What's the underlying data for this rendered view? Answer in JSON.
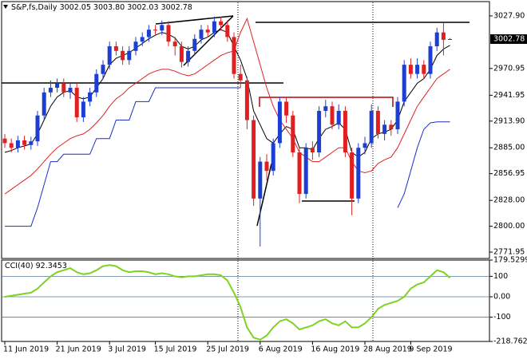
{
  "chart_data": [
    {
      "type": "candlestick",
      "title": "S&P,fs,Daily",
      "ohlc_labels": [
        "3002.05",
        "3003.80",
        "3002.03",
        "3002.78"
      ],
      "categories": [
        "11 Jun 2019",
        null,
        null,
        null,
        null,
        null,
        null,
        null,
        "21 Jun 2019",
        null,
        null,
        null,
        null,
        null,
        null,
        null,
        "3 Jul 2019",
        null,
        null,
        null,
        null,
        null,
        null,
        "15 Jul 2019",
        null,
        null,
        null,
        null,
        null,
        null,
        null,
        "25 Jul 2019",
        null,
        null,
        null,
        null,
        null,
        null,
        null,
        "6 Aug 2019",
        null,
        null,
        null,
        null,
        null,
        null,
        null,
        "16 Aug 2019",
        null,
        null,
        null,
        null,
        null,
        null,
        null,
        "28 Aug 2019",
        null,
        null,
        null,
        null,
        null,
        null,
        "9 Sep 2019",
        null,
        null,
        null,
        null,
        null,
        null
      ],
      "open": [
        2895,
        2890,
        2885,
        2893,
        2888,
        2892,
        2920,
        2945,
        2950,
        2955,
        2945,
        2950,
        2918,
        2935,
        2945,
        2965,
        2975,
        2995,
        2990,
        2980,
        2990,
        3000,
        3005,
        3013,
        3012,
        3018,
        3000,
        2995,
        2978,
        2990,
        3003,
        3013,
        3010,
        3022,
        3018,
        3005,
        2965,
        2958,
        2915,
        2830,
        2870,
        2860,
        2890,
        2935,
        2920,
        2880,
        2835,
        2885,
        2880,
        2925,
        2930,
        2910,
        2925,
        2880,
        2830,
        2885,
        2890,
        2925,
        2900,
        2910,
        2905,
        2935,
        2975,
        2965,
        2975,
        2965,
        2995,
        3010,
        3002.05
      ],
      "high": [
        2900,
        2895,
        2898,
        2898,
        2897,
        2925,
        2950,
        2958,
        2960,
        2960,
        2955,
        2955,
        2940,
        2950,
        2970,
        2980,
        3000,
        3000,
        2995,
        2995,
        3005,
        3010,
        3018,
        3018,
        3023,
        3022,
        3005,
        3000,
        2995,
        3008,
        3018,
        3018,
        3027,
        3027,
        3023,
        3010,
        2975,
        2962,
        2920,
        2875,
        2878,
        2895,
        2940,
        2940,
        2925,
        2885,
        2890,
        2892,
        2930,
        2937,
        2935,
        2932,
        2930,
        2885,
        2890,
        2897,
        2932,
        2930,
        2915,
        2915,
        2940,
        2980,
        2982,
        2982,
        2980,
        3000,
        3015,
        3020,
        3003.8
      ],
      "low": [
        2885,
        2880,
        2880,
        2883,
        2883,
        2887,
        2915,
        2940,
        2945,
        2940,
        2938,
        2913,
        2913,
        2930,
        2940,
        2960,
        2970,
        2985,
        2975,
        2975,
        2985,
        2995,
        3000,
        3007,
        3007,
        2995,
        2985,
        2972,
        2973,
        2985,
        2998,
        3005,
        3005,
        3012,
        3000,
        2960,
        2950,
        2905,
        2822,
        2778,
        2850,
        2855,
        2885,
        2912,
        2875,
        2825,
        2830,
        2872,
        2875,
        2918,
        2905,
        2905,
        2875,
        2812,
        2825,
        2878,
        2885,
        2895,
        2893,
        2898,
        2900,
        2930,
        2960,
        2960,
        2960,
        2960,
        2990,
        2985,
        3002.03
      ],
      "close": [
        2890,
        2885,
        2893,
        2888,
        2892,
        2920,
        2945,
        2950,
        2955,
        2945,
        2950,
        2918,
        2935,
        2945,
        2965,
        2975,
        2995,
        2990,
        2980,
        2990,
        3000,
        3005,
        3013,
        3012,
        3018,
        3000,
        2995,
        2978,
        2990,
        3003,
        3013,
        3010,
        3022,
        3018,
        3005,
        2965,
        2958,
        2915,
        2830,
        2870,
        2860,
        2890,
        2935,
        2920,
        2880,
        2835,
        2885,
        2880,
        2925,
        2930,
        2910,
        2925,
        2880,
        2830,
        2885,
        2890,
        2925,
        2900,
        2910,
        2905,
        2935,
        2975,
        2965,
        2975,
        2965,
        2995,
        3010,
        3002,
        3002.78
      ],
      "up_color": "#1c3fd1",
      "down_color": "#e02020",
      "overlays": [
        {
          "color": "#000000",
          "values": [
            2880,
            2882,
            2885,
            2887,
            2889,
            2900,
            2915,
            2930,
            2940,
            2945,
            2947,
            2940,
            2938,
            2940,
            2950,
            2960,
            2975,
            2982,
            2985,
            2988,
            2993,
            2998,
            3003,
            3007,
            3010,
            3008,
            3004,
            2995,
            2992,
            2995,
            3002,
            3005,
            3010,
            3013,
            3010,
            2995,
            2980,
            2960,
            2925,
            2910,
            2895,
            2890,
            2900,
            2908,
            2905,
            2885,
            2885,
            2883,
            2895,
            2905,
            2908,
            2912,
            2905,
            2880,
            2875,
            2880,
            2895,
            2900,
            2902,
            2905,
            2915,
            2935,
            2945,
            2955,
            2960,
            2970,
            2985,
            2992,
            2996
          ]
        },
        {
          "color": "#e02020",
          "values": [
            2835,
            2840,
            2845,
            2850,
            2855,
            2862,
            2870,
            2878,
            2885,
            2890,
            2895,
            2898,
            2900,
            2905,
            2912,
            2920,
            2930,
            2938,
            2943,
            2950,
            2955,
            2960,
            2965,
            2968,
            2970,
            2970,
            2968,
            2965,
            2963,
            2965,
            2970,
            2975,
            2980,
            2985,
            2988,
            2990,
            3010,
            3025,
            3000,
            2975,
            2950,
            2930,
            2915,
            2905,
            2895,
            2880,
            2875,
            2870,
            2870,
            2875,
            2880,
            2885,
            2885,
            2870,
            2860,
            2858,
            2860,
            2868,
            2872,
            2875,
            2885,
            2900,
            2915,
            2930,
            2940,
            2950,
            2960,
            2965,
            2970
          ]
        },
        {
          "color": "#1c2fc8",
          "values": [
            2800,
            2800,
            2800,
            2800,
            2800,
            2820,
            2845,
            2870,
            2870,
            2878,
            2878,
            2878,
            2878,
            2878,
            2895,
            2895,
            2895,
            2915,
            2915,
            2915,
            2935,
            2935,
            2935,
            2950,
            2950,
            2950,
            2950,
            2950,
            2950,
            2950,
            2950,
            2950,
            2950,
            2950,
            2950,
            2950,
            2950,
            null,
            null,
            null,
            null,
            null,
            null,
            null,
            null,
            null,
            null,
            null,
            null,
            null,
            null,
            null,
            null,
            null,
            null,
            null,
            null,
            null,
            null,
            null,
            2820,
            2835,
            2860,
            2885,
            2905,
            2912,
            2913,
            2913,
            2913
          ]
        }
      ],
      "ylim": [
        2765.05,
        3043.4
      ],
      "yticks": [
        {
          "value": 3027.9,
          "label": "3027.90"
        },
        {
          "value": 2970.95,
          "label": "2970.95"
        },
        {
          "value": 2941.95,
          "label": "2941.95"
        },
        {
          "value": 2913.9,
          "label": "2913.90"
        },
        {
          "value": 2885,
          "label": "2885.00"
        },
        {
          "value": 2856.95,
          "label": "2856.95"
        },
        {
          "value": 2828,
          "label": "2828.00"
        },
        {
          "value": 2800,
          "label": "2800.00"
        },
        {
          "value": 2771.95,
          "label": "2771.95"
        }
      ]
    },
    {
      "type": "line",
      "title": "CCI(40)",
      "color": "#7ed321",
      "values": [
        0,
        5,
        10,
        15,
        20,
        40,
        70,
        100,
        120,
        130,
        140,
        120,
        110,
        115,
        130,
        150,
        155,
        150,
        130,
        120,
        125,
        125,
        120,
        110,
        115,
        110,
        100,
        95,
        100,
        100,
        105,
        110,
        110,
        105,
        80,
        20,
        -50,
        -150,
        -200,
        -210,
        -190,
        -150,
        -120,
        -110,
        -130,
        -160,
        -150,
        -140,
        -120,
        -110,
        -130,
        -140,
        -120,
        -150,
        -150,
        -130,
        -100,
        -60,
        -40,
        -30,
        -20,
        0,
        40,
        60,
        70,
        100,
        130,
        120,
        92.3453
      ],
      "ylim": [
        -218.7625,
        179.5299
      ],
      "yticks": [
        179.5299,
        100,
        {
          "value": 0,
          "label": "0.00"
        },
        -100,
        -218.7625
      ]
    }
  ]
}
